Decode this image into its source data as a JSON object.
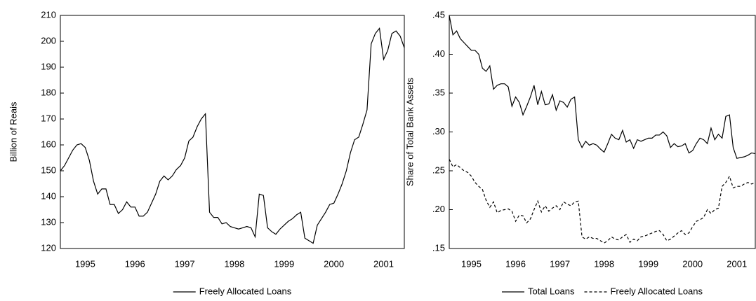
{
  "chart_data": [
    {
      "type": "line",
      "ylabel": "Billion of Reais",
      "categories": [
        null,
        null,
        null,
        null,
        null,
        null,
        "1995",
        null,
        null,
        null,
        null,
        null,
        null,
        null,
        null,
        null,
        null,
        null,
        "1996",
        null,
        null,
        null,
        null,
        null,
        null,
        null,
        null,
        null,
        null,
        null,
        "1997",
        null,
        null,
        null,
        null,
        null,
        null,
        null,
        null,
        null,
        null,
        null,
        "1998",
        null,
        null,
        null,
        null,
        null,
        null,
        null,
        null,
        null,
        null,
        null,
        "1999",
        null,
        null,
        null,
        null,
        null,
        null,
        null,
        null,
        null,
        null,
        null,
        "2000",
        null,
        null,
        null,
        null,
        null,
        null,
        null,
        null,
        null,
        null,
        null,
        "2001",
        null,
        null,
        null,
        null,
        null
      ],
      "series": [
        {
          "name": "Freely Allocated Loans",
          "color": "#000000",
          "dash": "solid",
          "values": [
            150,
            152,
            155,
            158,
            160,
            160.5,
            159,
            154,
            146,
            141,
            143,
            143,
            137,
            137,
            133.5,
            135,
            138,
            136,
            136,
            132.5,
            132.5,
            134,
            137.5,
            141,
            146,
            148,
            146.5,
            148,
            150.5,
            152,
            155,
            161.5,
            163,
            167,
            170,
            172,
            134,
            132,
            132,
            129.5,
            130,
            128.5,
            128,
            127.5,
            128,
            128.5,
            128,
            124.5,
            141,
            140.5,
            128,
            126.5,
            125.5,
            127.5,
            129,
            130.5,
            131.5,
            133,
            134,
            124,
            123,
            122,
            129,
            131.5,
            134,
            137,
            137.5,
            141,
            145,
            150,
            157,
            162,
            163,
            168,
            173.5,
            199,
            203,
            205,
            193,
            196.5,
            203,
            204,
            202,
            197.5
          ]
        }
      ],
      "ylim": [
        120,
        210
      ],
      "yticks": [
        120,
        130,
        140,
        150,
        160,
        170,
        180,
        190,
        200,
        210
      ]
    },
    {
      "type": "line",
      "ylabel": "Share of Total Bank Assets",
      "categories": [
        null,
        null,
        null,
        null,
        null,
        null,
        "1995",
        null,
        null,
        null,
        null,
        null,
        null,
        null,
        null,
        null,
        null,
        null,
        "1996",
        null,
        null,
        null,
        null,
        null,
        null,
        null,
        null,
        null,
        null,
        null,
        "1997",
        null,
        null,
        null,
        null,
        null,
        null,
        null,
        null,
        null,
        null,
        null,
        "1998",
        null,
        null,
        null,
        null,
        null,
        null,
        null,
        null,
        null,
        null,
        null,
        "1999",
        null,
        null,
        null,
        null,
        null,
        null,
        null,
        null,
        null,
        null,
        null,
        "2000",
        null,
        null,
        null,
        null,
        null,
        null,
        null,
        null,
        null,
        null,
        null,
        "2001",
        null,
        null,
        null,
        null,
        null
      ],
      "series": [
        {
          "name": "Total Loans",
          "color": "#000000",
          "dash": "solid",
          "values": [
            0.45,
            0.425,
            0.43,
            0.42,
            0.415,
            0.41,
            0.405,
            0.405,
            0.4,
            0.382,
            0.378,
            0.385,
            0.355,
            0.36,
            0.362,
            0.362,
            0.358,
            0.333,
            0.345,
            0.338,
            0.322,
            0.333,
            0.345,
            0.36,
            0.335,
            0.352,
            0.335,
            0.336,
            0.348,
            0.328,
            0.34,
            0.338,
            0.332,
            0.342,
            0.345,
            0.29,
            0.28,
            0.288,
            0.283,
            0.285,
            0.283,
            0.278,
            0.274,
            0.285,
            0.297,
            0.292,
            0.29,
            0.302,
            0.287,
            0.29,
            0.279,
            0.29,
            0.288,
            0.29,
            0.292,
            0.292,
            0.296,
            0.296,
            0.3,
            0.295,
            0.28,
            0.285,
            0.281,
            0.282,
            0.285,
            0.273,
            0.276,
            0.285,
            0.292,
            0.29,
            0.285,
            0.305,
            0.29,
            0.297,
            0.292,
            0.32,
            0.322,
            0.28,
            0.266,
            0.267,
            0.268,
            0.27,
            0.273,
            0.272
          ]
        },
        {
          "name": "Freely Allocated Loans",
          "color": "#000000",
          "dash": "dashed",
          "values": [
            0.265,
            0.255,
            0.258,
            0.254,
            0.25,
            0.248,
            0.243,
            0.235,
            0.23,
            0.226,
            0.212,
            0.203,
            0.21,
            0.196,
            0.199,
            0.2,
            0.201,
            0.198,
            0.185,
            0.193,
            0.192,
            0.183,
            0.188,
            0.2,
            0.211,
            0.197,
            0.205,
            0.198,
            0.202,
            0.205,
            0.2,
            0.21,
            0.207,
            0.205,
            0.21,
            0.211,
            0.165,
            0.162,
            0.165,
            0.163,
            0.163,
            0.16,
            0.157,
            0.16,
            0.165,
            0.162,
            0.161,
            0.165,
            0.168,
            0.158,
            0.162,
            0.16,
            0.165,
            0.166,
            0.168,
            0.17,
            0.172,
            0.173,
            0.168,
            0.16,
            0.162,
            0.166,
            0.17,
            0.173,
            0.168,
            0.17,
            0.178,
            0.185,
            0.187,
            0.19,
            0.2,
            0.195,
            0.2,
            0.202,
            0.23,
            0.235,
            0.243,
            0.228,
            0.23,
            0.23,
            0.233,
            0.235,
            0.233,
            0.235
          ]
        }
      ],
      "ylim": [
        0.15,
        0.45
      ],
      "yticks": [
        {
          "value": 0.15,
          "label": ".15"
        },
        {
          "value": 0.2,
          "label": ".20"
        },
        {
          "value": 0.25,
          "label": ".25"
        },
        {
          "value": 0.3,
          "label": ".30"
        },
        {
          "value": 0.35,
          "label": ".35"
        },
        {
          "value": 0.4,
          "label": ".40"
        },
        {
          "value": 0.45,
          "label": ".45"
        }
      ]
    }
  ]
}
